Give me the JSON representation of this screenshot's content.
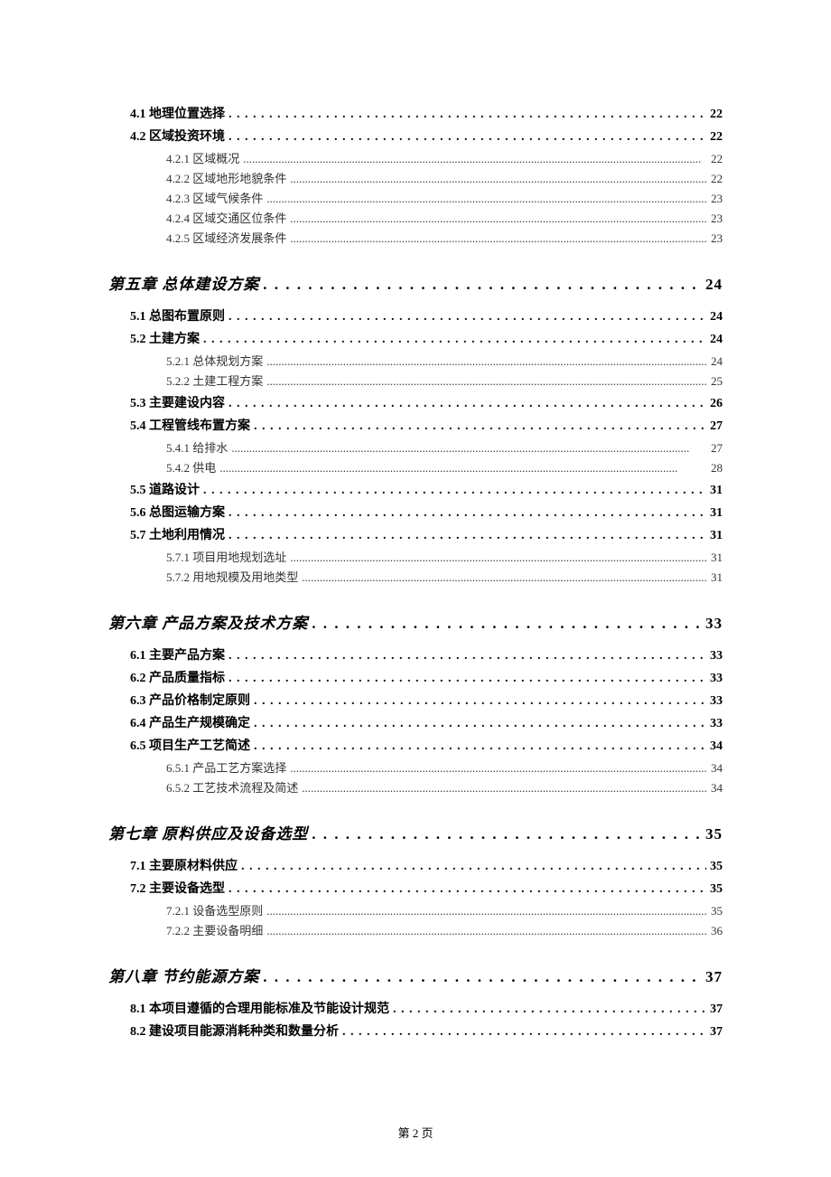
{
  "page_footer": "第 2 页",
  "colors": {
    "text": "#000000",
    "background": "#ffffff"
  },
  "typography": {
    "chapter_fontsize": 17,
    "section_fontsize": 14,
    "subsection_fontsize": 13,
    "footer_fontsize": 13
  },
  "entries": [
    {
      "level": "section",
      "label": "4.1 地理位置选择",
      "page": "22"
    },
    {
      "level": "section",
      "label": "4.2 区域投资环境",
      "page": "22"
    },
    {
      "level": "subsection",
      "label": "4.2.1 区域概况",
      "page": "22"
    },
    {
      "level": "subsection",
      "label": "4.2.2 区域地形地貌条件",
      "page": "22"
    },
    {
      "level": "subsection",
      "label": "4.2.3 区域气候条件",
      "page": "23"
    },
    {
      "level": "subsection",
      "label": "4.2.4 区域交通区位条件",
      "page": "23"
    },
    {
      "level": "subsection",
      "label": "4.2.5 区域经济发展条件",
      "page": "23"
    },
    {
      "level": "chapter",
      "label": "第五章 总体建设方案",
      "page": "24"
    },
    {
      "level": "section",
      "label": "5.1 总图布置原则",
      "page": "24"
    },
    {
      "level": "section",
      "label": "5.2 土建方案",
      "page": "24"
    },
    {
      "level": "subsection",
      "label": "5.2.1 总体规划方案",
      "page": "24"
    },
    {
      "level": "subsection",
      "label": "5.2.2 土建工程方案",
      "page": "25"
    },
    {
      "level": "section",
      "label": "5.3 主要建设内容",
      "page": "26"
    },
    {
      "level": "section",
      "label": "5.4 工程管线布置方案",
      "page": "27"
    },
    {
      "level": "subsection",
      "label": "5.4.1 给排水",
      "page": "27"
    },
    {
      "level": "subsection",
      "label": "5.4.2 供电",
      "page": "28"
    },
    {
      "level": "section",
      "label": "5.5 道路设计",
      "page": "31"
    },
    {
      "level": "section",
      "label": "5.6 总图运输方案",
      "page": "31"
    },
    {
      "level": "section",
      "label": "5.7 土地利用情况",
      "page": "31"
    },
    {
      "level": "subsection",
      "label": "5.7.1 项目用地规划选址",
      "page": "31"
    },
    {
      "level": "subsection",
      "label": "5.7.2 用地规模及用地类型",
      "page": "31"
    },
    {
      "level": "chapter",
      "label": "第六章 产品方案及技术方案",
      "page": "33"
    },
    {
      "level": "section",
      "label": "6.1 主要产品方案",
      "page": "33"
    },
    {
      "level": "section",
      "label": "6.2 产品质量指标",
      "page": "33"
    },
    {
      "level": "section",
      "label": "6.3 产品价格制定原则",
      "page": "33"
    },
    {
      "level": "section",
      "label": "6.4 产品生产规模确定",
      "page": "33"
    },
    {
      "level": "section",
      "label": "6.5 项目生产工艺简述",
      "page": "34"
    },
    {
      "level": "subsection",
      "label": "6.5.1 产品工艺方案选择",
      "page": "34"
    },
    {
      "level": "subsection",
      "label": "6.5.2 工艺技术流程及简述",
      "page": "34"
    },
    {
      "level": "chapter",
      "label": "第七章 原料供应及设备选型",
      "page": "35"
    },
    {
      "level": "section",
      "label": "7.1 主要原材料供应",
      "page": "35"
    },
    {
      "level": "section",
      "label": "7.2 主要设备选型",
      "page": "35"
    },
    {
      "level": "subsection",
      "label": "7.2.1 设备选型原则",
      "page": "35"
    },
    {
      "level": "subsection",
      "label": "7.2.2 主要设备明细",
      "page": "36"
    },
    {
      "level": "chapter",
      "label": "第八章 节约能源方案",
      "page": "37"
    },
    {
      "level": "section",
      "label": "8.1 本项目遵循的合理用能标准及节能设计规范",
      "page": "37"
    },
    {
      "level": "section",
      "label": "8.2 建设项目能源消耗种类和数量分析",
      "page": "37"
    }
  ]
}
